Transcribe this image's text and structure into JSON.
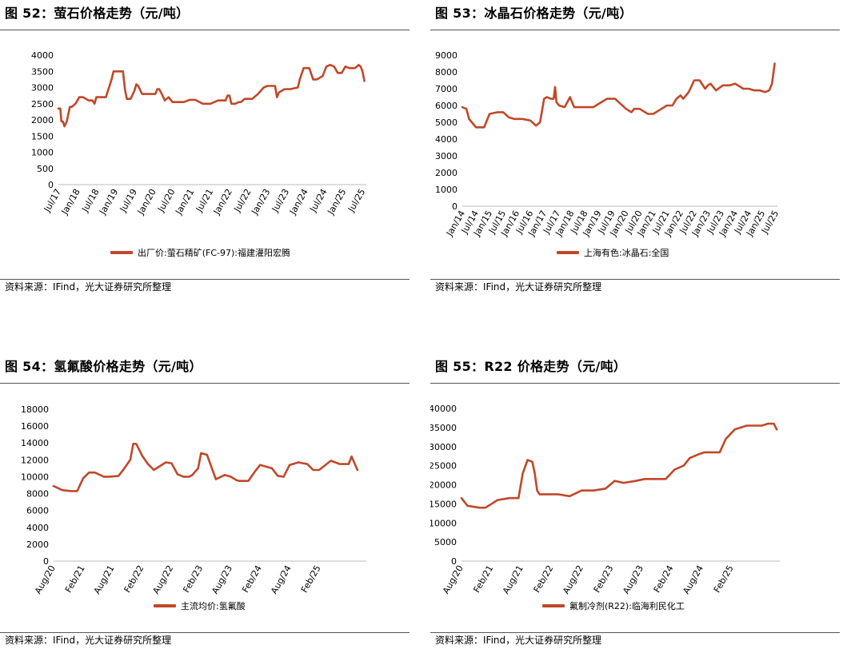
{
  "colors": {
    "series": "#C0482A",
    "axis": "#bbbbbb",
    "text": "#000000"
  },
  "source_text": "资料来源：IFind，光大证券研究所整理",
  "chart_data": [
    {
      "type": "line",
      "title": "图 52：萤石价格走势（元/吨）",
      "legend": "出厂价:萤石精矿(FC-97):福建灌阳宏腾",
      "ylim": [
        0,
        4000
      ],
      "yticks": [
        0,
        500,
        1000,
        1500,
        2000,
        2500,
        3000,
        3500,
        4000
      ],
      "xlim": [
        2017.5,
        2025.6
      ],
      "xticks": [
        {
          "pos": 2017.5,
          "label": "Jul/17"
        },
        {
          "pos": 2018.0,
          "label": "Jan/18"
        },
        {
          "pos": 2018.5,
          "label": "Jul/18"
        },
        {
          "pos": 2019.0,
          "label": "Jan/19"
        },
        {
          "pos": 2019.5,
          "label": "Jul/19"
        },
        {
          "pos": 2020.0,
          "label": "Jan/20"
        },
        {
          "pos": 2020.5,
          "label": "Jul/20"
        },
        {
          "pos": 2021.0,
          "label": "Jan/21"
        },
        {
          "pos": 2021.5,
          "label": "Jul/21"
        },
        {
          "pos": 2022.0,
          "label": "Jan/22"
        },
        {
          "pos": 2022.5,
          "label": "Jul/22"
        },
        {
          "pos": 2023.0,
          "label": "Jan/23"
        },
        {
          "pos": 2023.5,
          "label": "Jul/23"
        },
        {
          "pos": 2024.0,
          "label": "Jan/24"
        },
        {
          "pos": 2024.5,
          "label": "Jul/24"
        },
        {
          "pos": 2025.0,
          "label": "Jan/25"
        },
        {
          "pos": 2025.5,
          "label": "Jul/25"
        }
      ],
      "x": [
        2017.5,
        2017.55,
        2017.58,
        2017.62,
        2017.66,
        2017.72,
        2017.8,
        2017.85,
        2017.95,
        2018.05,
        2018.15,
        2018.3,
        2018.4,
        2018.45,
        2018.5,
        2018.6,
        2018.75,
        2018.9,
        2018.95,
        2019.1,
        2019.2,
        2019.25,
        2019.3,
        2019.4,
        2019.5,
        2019.55,
        2019.6,
        2019.7,
        2019.8,
        2019.9,
        2020.05,
        2020.1,
        2020.15,
        2020.2,
        2020.3,
        2020.4,
        2020.5,
        2020.6,
        2020.8,
        2020.95,
        2021.1,
        2021.3,
        2021.4,
        2021.5,
        2021.7,
        2021.9,
        2021.95,
        2022.0,
        2022.05,
        2022.15,
        2022.25,
        2022.3,
        2022.4,
        2022.6,
        2022.75,
        2022.9,
        2023.0,
        2023.1,
        2023.2,
        2023.25,
        2023.3,
        2023.45,
        2023.6,
        2023.8,
        2023.85,
        2023.95,
        2024.1,
        2024.2,
        2024.3,
        2024.45,
        2024.55,
        2024.65,
        2024.75,
        2024.85,
        2024.95,
        2025.05,
        2025.15,
        2025.3,
        2025.4,
        2025.45,
        2025.5,
        2025.55
      ],
      "y": [
        2350,
        2350,
        1950,
        1950,
        1800,
        1950,
        2400,
        2400,
        2500,
        2700,
        2700,
        2600,
        2600,
        2500,
        2700,
        2700,
        2700,
        3250,
        3500,
        3500,
        3500,
        2950,
        2650,
        2650,
        2900,
        3100,
        3050,
        2800,
        2800,
        2800,
        2800,
        2950,
        2950,
        2850,
        2600,
        2700,
        2550,
        2550,
        2550,
        2620,
        2620,
        2500,
        2500,
        2500,
        2600,
        2600,
        2750,
        2750,
        2500,
        2500,
        2550,
        2550,
        2650,
        2650,
        2800,
        3000,
        3050,
        3050,
        3050,
        2700,
        2850,
        2950,
        2950,
        3000,
        3250,
        3600,
        3600,
        3250,
        3250,
        3350,
        3650,
        3700,
        3650,
        3450,
        3450,
        3650,
        3600,
        3600,
        3700,
        3650,
        3500,
        3200
      ]
    },
    {
      "type": "line",
      "title": "图 53：冰晶石价格走势（元/吨）",
      "legend": "上海有色:冰晶石:全国",
      "ylim": [
        0,
        9000
      ],
      "yticks": [
        0,
        1000,
        2000,
        3000,
        4000,
        5000,
        6000,
        7000,
        8000,
        9000
      ],
      "xlim": [
        2014.0,
        2025.55
      ],
      "xticks": [
        {
          "pos": 2014.0,
          "label": "Jan/14"
        },
        {
          "pos": 2014.5,
          "label": "Jul/14"
        },
        {
          "pos": 2015.0,
          "label": "Jan/15"
        },
        {
          "pos": 2015.5,
          "label": "Jul/15"
        },
        {
          "pos": 2016.0,
          "label": "Jan/16"
        },
        {
          "pos": 2016.5,
          "label": "Jul/16"
        },
        {
          "pos": 2017.0,
          "label": "Jan/17"
        },
        {
          "pos": 2017.5,
          "label": "Jul/17"
        },
        {
          "pos": 2018.0,
          "label": "Jan/18"
        },
        {
          "pos": 2018.5,
          "label": "Jul/18"
        },
        {
          "pos": 2019.0,
          "label": "Jan/19"
        },
        {
          "pos": 2019.5,
          "label": "Jul/19"
        },
        {
          "pos": 2020.0,
          "label": "Jan/20"
        },
        {
          "pos": 2020.5,
          "label": "Jul/20"
        },
        {
          "pos": 2021.0,
          "label": "Jan/21"
        },
        {
          "pos": 2021.5,
          "label": "Jul/21"
        },
        {
          "pos": 2022.0,
          "label": "Jan/22"
        },
        {
          "pos": 2022.5,
          "label": "Jul/22"
        },
        {
          "pos": 2023.0,
          "label": "Jan/23"
        },
        {
          "pos": 2023.5,
          "label": "Jul/23"
        },
        {
          "pos": 2024.0,
          "label": "Jan/24"
        },
        {
          "pos": 2024.5,
          "label": "Jul/24"
        },
        {
          "pos": 2025.0,
          "label": "Jan/25"
        },
        {
          "pos": 2025.5,
          "label": "Jul/25"
        }
      ],
      "x": [
        2014.0,
        2014.15,
        2014.25,
        2014.35,
        2014.5,
        2014.8,
        2015.0,
        2015.3,
        2015.5,
        2015.7,
        2015.9,
        2016.2,
        2016.5,
        2016.7,
        2016.85,
        2017.0,
        2017.1,
        2017.25,
        2017.35,
        2017.4,
        2017.45,
        2017.55,
        2017.75,
        2017.95,
        2018.1,
        2018.3,
        2018.8,
        2019.3,
        2019.45,
        2019.6,
        2019.8,
        2020.0,
        2020.2,
        2020.3,
        2020.5,
        2020.8,
        2021.0,
        2021.2,
        2021.3,
        2021.5,
        2021.7,
        2021.85,
        2022.0,
        2022.1,
        2022.3,
        2022.5,
        2022.7,
        2022.9,
        2023.0,
        2023.1,
        2023.3,
        2023.55,
        2023.8,
        2024.0,
        2024.3,
        2024.5,
        2024.7,
        2024.9,
        2025.1,
        2025.25,
        2025.35,
        2025.45
      ],
      "y": [
        5900,
        5800,
        5200,
        5000,
        4700,
        4700,
        5500,
        5600,
        5600,
        5300,
        5200,
        5200,
        5100,
        4800,
        5000,
        6400,
        6500,
        6400,
        6400,
        7100,
        6200,
        6000,
        5900,
        6500,
        5900,
        5900,
        5900,
        6400,
        6400,
        6400,
        6100,
        5800,
        5600,
        5800,
        5800,
        5500,
        5500,
        5700,
        5800,
        6000,
        6000,
        6400,
        6600,
        6400,
        6800,
        7500,
        7500,
        7000,
        7200,
        7300,
        6900,
        7200,
        7200,
        7300,
        7000,
        7000,
        6900,
        6900,
        6800,
        6900,
        7300,
        8500
      ]
    },
    {
      "type": "line",
      "title": "图 54：氢氟酸价格走势（元/吨）",
      "legend": "主流均价:氢氟酸",
      "ylim": [
        0,
        18000
      ],
      "yticks": [
        0,
        2000,
        4000,
        6000,
        8000,
        10000,
        12000,
        14000,
        16000,
        18000
      ],
      "xlim": [
        2020.6,
        2025.9
      ],
      "xticks": [
        {
          "pos": 2020.583,
          "label": "Aug/20"
        },
        {
          "pos": 2021.083,
          "label": "Feb/21"
        },
        {
          "pos": 2021.583,
          "label": "Aug/21"
        },
        {
          "pos": 2022.083,
          "label": "Feb/22"
        },
        {
          "pos": 2022.583,
          "label": "Aug/22"
        },
        {
          "pos": 2023.083,
          "label": "Feb/23"
        },
        {
          "pos": 2023.583,
          "label": "Aug/23"
        },
        {
          "pos": 2024.083,
          "label": "Feb/24"
        },
        {
          "pos": 2024.583,
          "label": "Aug/24"
        },
        {
          "pos": 2025.083,
          "label": "Feb/25"
        }
      ],
      "x": [
        2020.6,
        2020.75,
        2020.9,
        2021.0,
        2021.1,
        2021.2,
        2021.3,
        2021.45,
        2021.55,
        2021.7,
        2021.8,
        2021.9,
        2021.95,
        2022.0,
        2022.1,
        2022.2,
        2022.3,
        2022.5,
        2022.6,
        2022.7,
        2022.8,
        2022.9,
        2022.95,
        2023.05,
        2023.1,
        2023.2,
        2023.35,
        2023.5,
        2023.6,
        2023.7,
        2023.75,
        2023.9,
        2024.0,
        2024.1,
        2024.3,
        2024.4,
        2024.5,
        2024.6,
        2024.75,
        2024.9,
        2025.0,
        2025.1,
        2025.3,
        2025.45,
        2025.5,
        2025.6,
        2025.65,
        2025.75
      ],
      "y": [
        8900,
        8400,
        8300,
        8300,
        9800,
        10500,
        10500,
        10000,
        10000,
        10100,
        11000,
        12000,
        13900,
        13900,
        12500,
        11500,
        10800,
        11700,
        11600,
        10300,
        10000,
        10000,
        10200,
        11000,
        12800,
        12600,
        9700,
        10200,
        10000,
        9600,
        9500,
        9500,
        10500,
        11400,
        11000,
        10100,
        10000,
        11400,
        11700,
        11500,
        10800,
        10800,
        11900,
        11500,
        11500,
        11500,
        12400,
        10800
      ]
    },
    {
      "type": "line",
      "title": "图 55：R22 价格走势（元/吨）",
      "legend": "氟制冷剂(R22):临海利民化工",
      "ylim": [
        0,
        40000
      ],
      "yticks": [
        0,
        5000,
        10000,
        15000,
        20000,
        25000,
        30000,
        35000,
        40000
      ],
      "xlim": [
        2020.6,
        2025.9
      ],
      "xticks": [
        {
          "pos": 2020.583,
          "label": "Aug/20"
        },
        {
          "pos": 2021.083,
          "label": "Feb/21"
        },
        {
          "pos": 2021.583,
          "label": "Aug/21"
        },
        {
          "pos": 2022.083,
          "label": "Feb/22"
        },
        {
          "pos": 2022.583,
          "label": "Aug/22"
        },
        {
          "pos": 2023.083,
          "label": "Feb/23"
        },
        {
          "pos": 2023.583,
          "label": "Aug/23"
        },
        {
          "pos": 2024.083,
          "label": "Feb/24"
        },
        {
          "pos": 2024.583,
          "label": "Aug/24"
        },
        {
          "pos": 2025.083,
          "label": "Feb/25"
        }
      ],
      "x": [
        2020.6,
        2020.7,
        2020.9,
        2021.0,
        2021.2,
        2021.4,
        2021.55,
        2021.62,
        2021.7,
        2021.78,
        2021.82,
        2021.86,
        2021.9,
        2022.0,
        2022.2,
        2022.4,
        2022.6,
        2022.8,
        2023.0,
        2023.15,
        2023.3,
        2023.5,
        2023.65,
        2023.8,
        2024.0,
        2024.15,
        2024.3,
        2024.4,
        2024.55,
        2024.65,
        2024.75,
        2024.8,
        2024.9,
        2025.0,
        2025.15,
        2025.25,
        2025.35,
        2025.45,
        2025.55,
        2025.6,
        2025.7,
        2025.8,
        2025.85
      ],
      "y": [
        16500,
        14500,
        14000,
        14000,
        16000,
        16500,
        16500,
        23000,
        26500,
        26000,
        23000,
        18500,
        17500,
        17500,
        17500,
        17000,
        18500,
        18500,
        19000,
        21000,
        20500,
        21000,
        21500,
        21500,
        21500,
        24000,
        25000,
        27000,
        28000,
        28500,
        28500,
        28500,
        28500,
        32000,
        34500,
        35000,
        35500,
        35500,
        35500,
        35500,
        36000,
        36000,
        34500
      ]
    }
  ]
}
